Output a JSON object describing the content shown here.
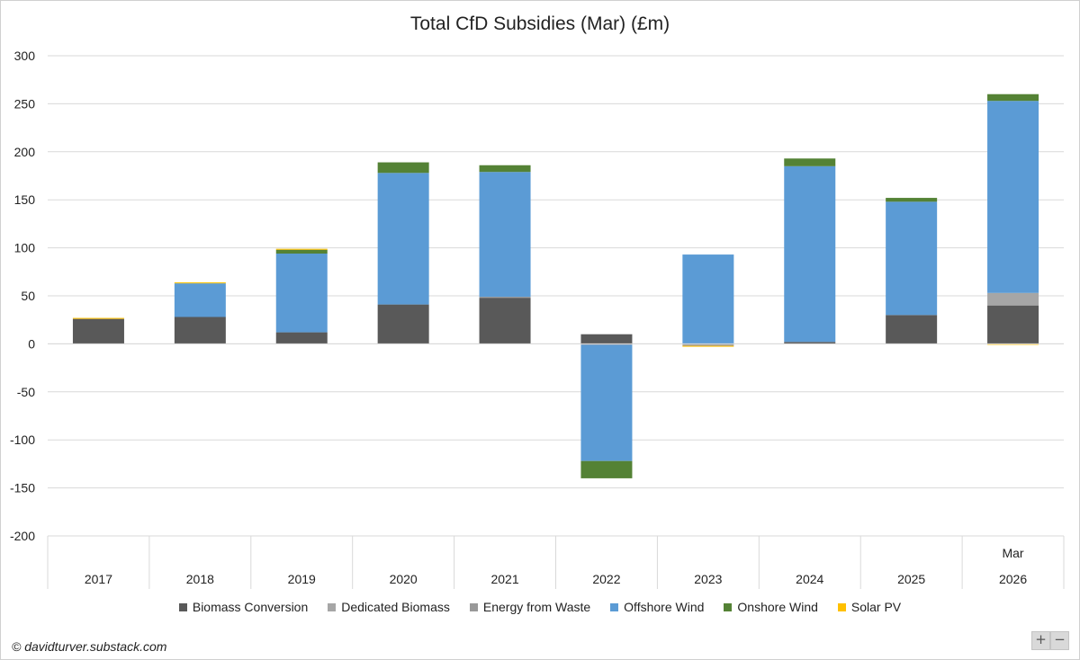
{
  "title": "Total CfD Subsidies (Mar) (£m)",
  "credit": "© davidturver.substack.com",
  "zoom": {
    "plus": "+",
    "minus": "−"
  },
  "chart_data": {
    "type": "bar",
    "stacked": true,
    "title": "Total CfD Subsidies (Mar) (£m)",
    "categories": [
      "2017",
      "2018",
      "2019",
      "2020",
      "2021",
      "2022",
      "2023",
      "2024",
      "2025",
      "2026"
    ],
    "category_top_labels": [
      "",
      "",
      "",
      "",
      "",
      "",
      "",
      "",
      "",
      "Mar"
    ],
    "ylim": [
      -200,
      300
    ],
    "yticks": [
      300,
      250,
      200,
      150,
      100,
      50,
      0,
      -50,
      -100,
      -150,
      -200
    ],
    "grid": true,
    "legend_position": "bottom",
    "series": [
      {
        "name": "Biomass Conversion",
        "color": "#595959",
        "values": [
          26,
          28,
          12,
          41,
          48,
          10,
          0,
          2,
          30,
          40
        ]
      },
      {
        "name": "Dedicated Biomass",
        "color": "#a6a6a6",
        "values": [
          0,
          0,
          0,
          0,
          0,
          -1,
          -1,
          0,
          0,
          13
        ]
      },
      {
        "name": "Energy from Waste",
        "color": "#999999",
        "values": [
          0,
          0,
          0,
          0,
          1,
          0,
          -1,
          0,
          0,
          0
        ]
      },
      {
        "name": "Offshore Wind",
        "color": "#5b9bd5",
        "values": [
          0,
          35,
          82,
          137,
          130,
          -121,
          93,
          183,
          118,
          200
        ]
      },
      {
        "name": "Onshore Wind",
        "color": "#548235",
        "values": [
          0,
          0,
          4,
          11,
          7,
          -18,
          0,
          8,
          4,
          7
        ]
      },
      {
        "name": "Solar PV",
        "color": "#ffc000",
        "values": [
          1,
          1,
          1,
          0,
          0,
          0,
          -1,
          0,
          0,
          -1
        ]
      }
    ]
  }
}
